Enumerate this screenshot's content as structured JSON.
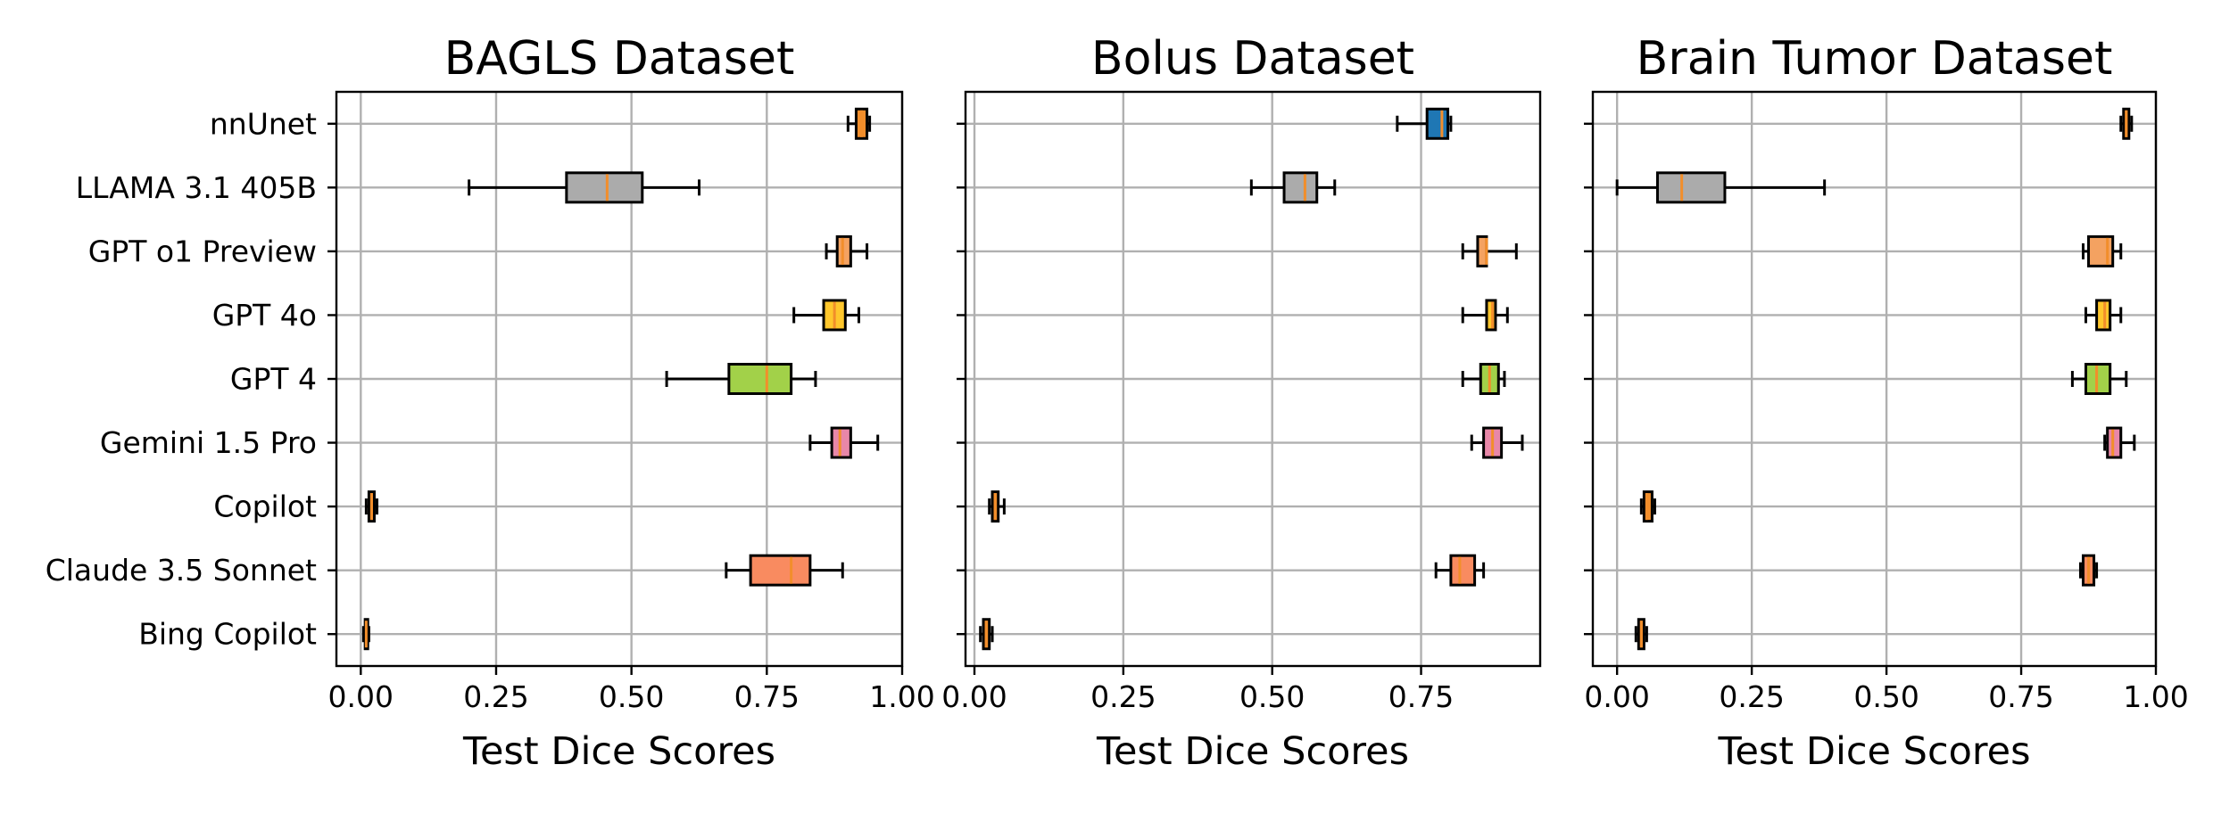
{
  "chart_data": [
    {
      "type": "boxplot",
      "title": "BAGLS Dataset",
      "xlabel": "Test Dice Scores",
      "xlim": [
        -0.045,
        1.0
      ],
      "xticks": [
        0.0,
        0.25,
        0.5,
        0.75,
        1.0
      ],
      "xtick_labels": [
        "0.00",
        "0.25",
        "0.50",
        "0.75",
        "1.00"
      ],
      "grid": true,
      "categories": [
        "nnUnet",
        "LLAMA 3.1 405B",
        "GPT o1 Preview",
        "GPT 4o",
        "GPT 4",
        "Gemini 1.5 Pro",
        "Copilot",
        "Claude 3.5 Sonnet",
        "Bing Copilot"
      ],
      "boxes": [
        {
          "whisker_low": 0.9,
          "q1": 0.915,
          "median": 0.925,
          "q3": 0.935,
          "whisker_high": 0.94,
          "color": "#F28E2B"
        },
        {
          "whisker_low": 0.2,
          "q1": 0.38,
          "median": 0.455,
          "q3": 0.52,
          "whisker_high": 0.625,
          "color": "#ABABAB"
        },
        {
          "whisker_low": 0.86,
          "q1": 0.88,
          "median": 0.89,
          "q3": 0.905,
          "whisker_high": 0.935,
          "color": "#F4A261"
        },
        {
          "whisker_low": 0.8,
          "q1": 0.855,
          "median": 0.875,
          "q3": 0.895,
          "whisker_high": 0.92,
          "color": "#FFC72C"
        },
        {
          "whisker_low": 0.565,
          "q1": 0.68,
          "median": 0.75,
          "q3": 0.795,
          "whisker_high": 0.84,
          "color": "#A2D149"
        },
        {
          "whisker_low": 0.83,
          "q1": 0.87,
          "median": 0.885,
          "q3": 0.905,
          "whisker_high": 0.955,
          "color": "#E887A8"
        },
        {
          "whisker_low": 0.01,
          "q1": 0.015,
          "median": 0.02,
          "q3": 0.025,
          "whisker_high": 0.03,
          "color": "#F28E2B"
        },
        {
          "whisker_low": 0.675,
          "q1": 0.72,
          "median": 0.795,
          "q3": 0.83,
          "whisker_high": 0.89,
          "color": "#F98B60"
        },
        {
          "whisker_low": 0.005,
          "q1": 0.008,
          "median": 0.01,
          "q3": 0.013,
          "whisker_high": 0.015,
          "color": "#F28E2B"
        }
      ]
    },
    {
      "type": "boxplot",
      "title": "Bolus Dataset",
      "xlabel": "Test Dice Scores",
      "xlim": [
        -0.015,
        0.95
      ],
      "xticks": [
        0.0,
        0.25,
        0.5,
        0.75
      ],
      "xtick_labels": [
        "0.00",
        "0.25",
        "0.50",
        "0.75"
      ],
      "grid": true,
      "categories": [
        "nnUnet",
        "LLAMA 3.1 405B",
        "GPT o1 Preview",
        "GPT 4o",
        "GPT 4",
        "Gemini 1.5 Pro",
        "Copilot",
        "Claude 3.5 Sonnet",
        "Bing Copilot"
      ],
      "boxes": [
        {
          "whisker_low": 0.71,
          "q1": 0.76,
          "median": 0.785,
          "q3": 0.795,
          "whisker_high": 0.8,
          "color": "#1F77B4"
        },
        {
          "whisker_low": 0.465,
          "q1": 0.52,
          "median": 0.555,
          "q3": 0.575,
          "whisker_high": 0.605,
          "color": "#ABABAB"
        },
        {
          "whisker_low": 0.82,
          "q1": 0.845,
          "median": 0.86,
          "q3": 0.86,
          "whisker_high": 0.91,
          "color": "#F4A261"
        },
        {
          "whisker_low": 0.82,
          "q1": 0.86,
          "median": 0.87,
          "q3": 0.875,
          "whisker_high": 0.895,
          "color": "#FFC72C"
        },
        {
          "whisker_low": 0.82,
          "q1": 0.85,
          "median": 0.865,
          "q3": 0.88,
          "whisker_high": 0.89,
          "color": "#A2D149"
        },
        {
          "whisker_low": 0.835,
          "q1": 0.855,
          "median": 0.87,
          "q3": 0.885,
          "whisker_high": 0.92,
          "color": "#E887A8"
        },
        {
          "whisker_low": 0.025,
          "q1": 0.03,
          "median": 0.035,
          "q3": 0.04,
          "whisker_high": 0.05,
          "color": "#F28E2B"
        },
        {
          "whisker_low": 0.775,
          "q1": 0.8,
          "median": 0.815,
          "q3": 0.84,
          "whisker_high": 0.855,
          "color": "#F98B60"
        },
        {
          "whisker_low": 0.01,
          "q1": 0.015,
          "median": 0.02,
          "q3": 0.025,
          "whisker_high": 0.03,
          "color": "#F28E2B"
        }
      ]
    },
    {
      "type": "boxplot",
      "title": "Brain Tumor Dataset",
      "xlabel": "Test Dice Scores",
      "xlim": [
        -0.045,
        1.0
      ],
      "xticks": [
        0.0,
        0.25,
        0.5,
        0.75,
        1.0
      ],
      "xtick_labels": [
        "0.00",
        "0.25",
        "0.50",
        "0.75",
        "1.00"
      ],
      "grid": true,
      "categories": [
        "nnUnet",
        "LLAMA 3.1 405B",
        "GPT o1 Preview",
        "GPT 4o",
        "GPT 4",
        "Gemini 1.5 Pro",
        "Copilot",
        "Claude 3.5 Sonnet",
        "Bing Copilot"
      ],
      "boxes": [
        {
          "whisker_low": 0.935,
          "q1": 0.94,
          "median": 0.945,
          "q3": 0.95,
          "whisker_high": 0.955,
          "color": "#F28E2B"
        },
        {
          "whisker_low": 0.0,
          "q1": 0.075,
          "median": 0.12,
          "q3": 0.2,
          "whisker_high": 0.385,
          "color": "#ABABAB"
        },
        {
          "whisker_low": 0.865,
          "q1": 0.875,
          "median": 0.91,
          "q3": 0.92,
          "whisker_high": 0.935,
          "color": "#F4A261"
        },
        {
          "whisker_low": 0.87,
          "q1": 0.89,
          "median": 0.905,
          "q3": 0.915,
          "whisker_high": 0.935,
          "color": "#FFC72C"
        },
        {
          "whisker_low": 0.845,
          "q1": 0.87,
          "median": 0.89,
          "q3": 0.915,
          "whisker_high": 0.945,
          "color": "#A2D149"
        },
        {
          "whisker_low": 0.905,
          "q1": 0.91,
          "median": 0.92,
          "q3": 0.935,
          "whisker_high": 0.96,
          "color": "#E887A8"
        },
        {
          "whisker_low": 0.045,
          "q1": 0.05,
          "median": 0.055,
          "q3": 0.065,
          "whisker_high": 0.07,
          "color": "#F28E2B"
        },
        {
          "whisker_low": 0.86,
          "q1": 0.865,
          "median": 0.875,
          "q3": 0.885,
          "whisker_high": 0.89,
          "color": "#F98B60"
        },
        {
          "whisker_low": 0.035,
          "q1": 0.04,
          "median": 0.045,
          "q3": 0.05,
          "whisker_high": 0.055,
          "color": "#F28E2B"
        }
      ]
    }
  ]
}
